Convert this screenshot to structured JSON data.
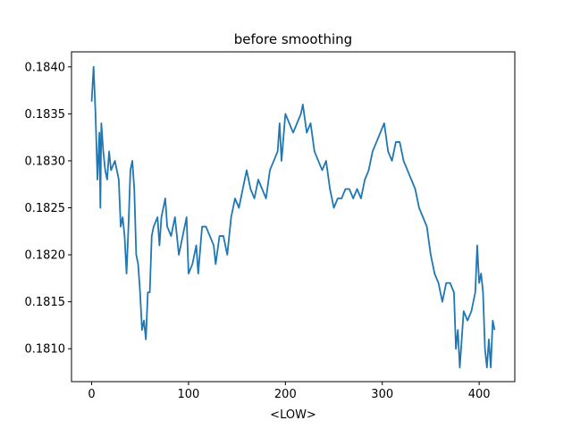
{
  "chart_data": {
    "type": "line",
    "title": "before smoothing",
    "xlabel": "<LOW>",
    "xlim": [
      -20.8,
      436.8
    ],
    "xticks": [
      0,
      100,
      200,
      300,
      400
    ],
    "ylim": [
      0.18065,
      0.18416
    ],
    "yticks": [
      {
        "value": 0.181,
        "label": "0.1810"
      },
      {
        "value": 0.1815,
        "label": "0.1815"
      },
      {
        "value": 0.182,
        "label": "0.1820"
      },
      {
        "value": 0.1825,
        "label": "0.1825"
      },
      {
        "value": 0.183,
        "label": "0.1830"
      },
      {
        "value": 0.1835,
        "label": "0.1835"
      },
      {
        "value": 0.184,
        "label": "0.1840"
      }
    ],
    "series": [
      {
        "color": "#1f77b4",
        "x": [
          0,
          2,
          4,
          6,
          8,
          9,
          10,
          12,
          14,
          16,
          18,
          20,
          24,
          28,
          30,
          32,
          34,
          36,
          38,
          40,
          42,
          44,
          46,
          48,
          50,
          52,
          54,
          56,
          58,
          60,
          62,
          64,
          68,
          70,
          72,
          76,
          78,
          82,
          86,
          90,
          94,
          98,
          100,
          104,
          108,
          110,
          114,
          118,
          122,
          126,
          128,
          132,
          136,
          140,
          144,
          148,
          152,
          156,
          160,
          164,
          168,
          172,
          176,
          180,
          184,
          188,
          192,
          194,
          196,
          200,
          204,
          208,
          212,
          216,
          218,
          222,
          226,
          230,
          234,
          238,
          242,
          246,
          250,
          254,
          258,
          262,
          266,
          270,
          274,
          278,
          282,
          286,
          290,
          294,
          298,
          302,
          306,
          310,
          314,
          318,
          322,
          326,
          330,
          334,
          338,
          342,
          346,
          350,
          354,
          358,
          362,
          366,
          370,
          374,
          376,
          378,
          380,
          384,
          388,
          392,
          396,
          398,
          400,
          402,
          404,
          406,
          408,
          410,
          412,
          414,
          416
        ],
        "values": [
          0.18363,
          0.184,
          0.1835,
          0.1828,
          0.1833,
          0.1825,
          0.1834,
          0.1831,
          0.1829,
          0.1828,
          0.1831,
          0.1829,
          0.183,
          0.1828,
          0.1823,
          0.1824,
          0.1822,
          0.1818,
          0.1823,
          0.1829,
          0.183,
          0.1827,
          0.182,
          0.1819,
          0.1816,
          0.1812,
          0.1813,
          0.1811,
          0.1816,
          0.1816,
          0.1822,
          0.1823,
          0.1824,
          0.1821,
          0.1824,
          0.1826,
          0.1823,
          0.1822,
          0.1824,
          0.182,
          0.1822,
          0.1824,
          0.1818,
          0.1819,
          0.1821,
          0.1818,
          0.1823,
          0.1823,
          0.1822,
          0.1821,
          0.1819,
          0.1822,
          0.1822,
          0.182,
          0.1824,
          0.1826,
          0.1825,
          0.1827,
          0.1829,
          0.1827,
          0.1826,
          0.1828,
          0.1827,
          0.1826,
          0.1829,
          0.183,
          0.1831,
          0.1834,
          0.183,
          0.1835,
          0.1834,
          0.1833,
          0.1834,
          0.1835,
          0.1836,
          0.1833,
          0.1834,
          0.1831,
          0.183,
          0.1829,
          0.183,
          0.1827,
          0.1825,
          0.1826,
          0.1826,
          0.1827,
          0.1827,
          0.1826,
          0.1827,
          0.1826,
          0.1828,
          0.1829,
          0.1831,
          0.1832,
          0.1833,
          0.1834,
          0.1831,
          0.183,
          0.1832,
          0.1832,
          0.183,
          0.1829,
          0.1828,
          0.1827,
          0.1825,
          0.1824,
          0.1823,
          0.182,
          0.1818,
          0.1817,
          0.1815,
          0.1817,
          0.1817,
          0.1816,
          0.181,
          0.1812,
          0.1808,
          0.1814,
          0.1813,
          0.1814,
          0.1816,
          0.1821,
          0.1817,
          0.1818,
          0.1816,
          0.181,
          0.1808,
          0.1811,
          0.1808,
          0.1813,
          0.1812
        ]
      }
    ]
  }
}
